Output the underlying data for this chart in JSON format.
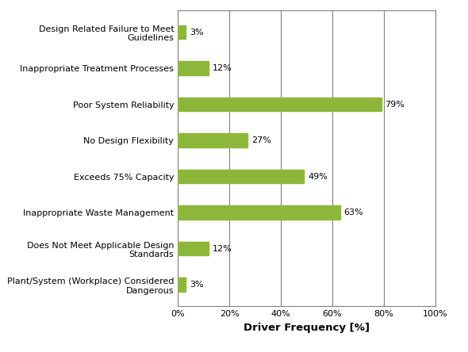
{
  "categories": [
    "Plant/System (Workplace) Considered\nDangerous",
    "Does Not Meet Applicable Design\nStandards",
    "Inappropriate Waste Management",
    "Exceeds 75% Capacity",
    "No Design Flexibility",
    "Poor System Reliability",
    "Inappropriate Treatment Processes",
    "Design Related Failure to Meet\nGuidelines"
  ],
  "values": [
    3,
    12,
    63,
    49,
    27,
    79,
    12,
    3
  ],
  "bar_color": "#8DB73B",
  "xlabel": "Driver Frequency [%]",
  "xlim": [
    0,
    100
  ],
  "xticks": [
    0,
    20,
    40,
    60,
    80,
    100
  ],
  "xtick_labels": [
    "0%",
    "20%",
    "40%",
    "60%",
    "80%",
    "100%"
  ],
  "grid_color": "#808080",
  "background_color": "#ffffff",
  "label_fontsize": 8.0,
  "value_fontsize": 8.0,
  "xlabel_fontsize": 9.5,
  "bar_height": 0.38,
  "figsize": [
    5.9,
    4.44
  ],
  "dpi": 100
}
